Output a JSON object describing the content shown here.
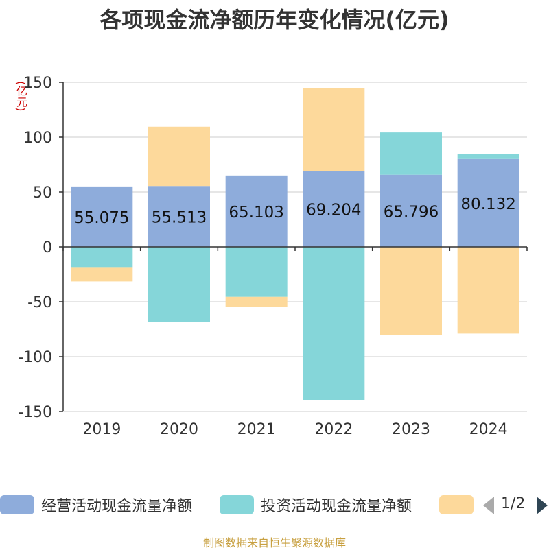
{
  "title": "各项现金流净额历年变化情况(亿元)",
  "unit": "(亿元)",
  "source": "制图数据来自恒生聚源数据库",
  "pager": {
    "text": "1/2",
    "prev": "prev-arrow",
    "next": "next-arrow"
  },
  "colors": {
    "operating": "#8eacdb",
    "investing": "#85d6d9",
    "financing": "#fdd99b"
  },
  "chart_data": {
    "type": "bar",
    "stacked": true,
    "categories": [
      "2019",
      "2020",
      "2021",
      "2022",
      "2023",
      "2024"
    ],
    "yticks": [
      150,
      100,
      50,
      0,
      -50,
      -100,
      -150
    ],
    "ylim": [
      -150,
      150
    ],
    "grid": true,
    "legend_position": "bottom",
    "series": [
      {
        "name": "经营活动现金流量净额",
        "color": "#8eacdb",
        "values": [
          55.075,
          55.513,
          65.103,
          69.204,
          65.796,
          80.132
        ]
      },
      {
        "name": "投资活动现金流量净额",
        "color": "#85d6d9",
        "values": [
          -19,
          -68.5,
          -45.5,
          -139.5,
          38.5,
          4.5
        ]
      },
      {
        "name": "",
        "color": "#fdd99b",
        "values": [
          -12.5,
          54,
          -9.5,
          75.5,
          -80,
          -79
        ]
      }
    ],
    "data_labels": [
      "55.075",
      "55.513",
      "65.103",
      "69.204",
      "65.796",
      "80.132"
    ]
  }
}
